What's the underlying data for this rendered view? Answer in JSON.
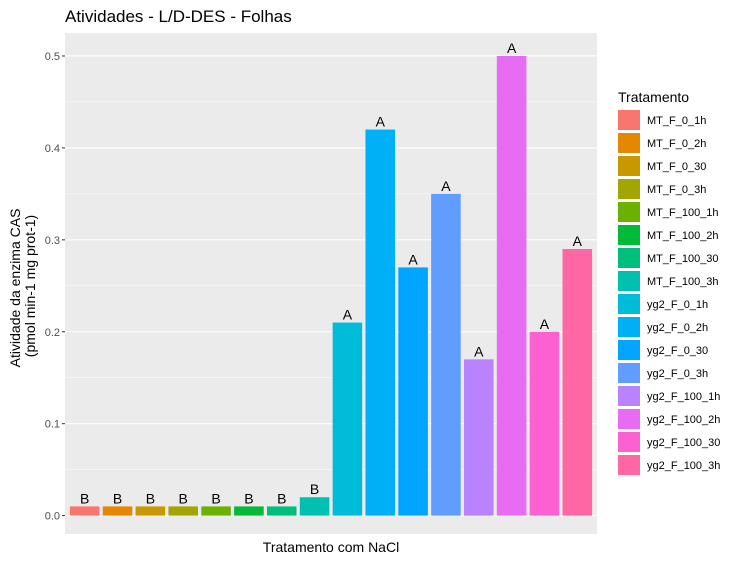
{
  "chart_data": {
    "type": "bar",
    "title": "Atividades - L/D-DES - Folhas",
    "xlabel": "Tratamento com NaCl",
    "ylabel_line1": "Atividade da enzima CAS",
    "ylabel_line2": "(pmol min-1 mg prot-1)",
    "ylim": [
      -0.02,
      0.525
    ],
    "yticks": [
      0.0,
      0.1,
      0.2,
      0.3,
      0.4,
      0.5
    ],
    "ytick_labels": [
      "0.0",
      "0.1",
      "0.2",
      "0.3",
      "0.4",
      "0.5"
    ],
    "grid": true,
    "legend_position": "right",
    "legend_title": "Tratamento",
    "categories": [
      "MT_F_0_1h",
      "MT_F_0_2h",
      "MT_F_0_30",
      "MT_F_0_3h",
      "MT_F_100_1h",
      "MT_F_100_2h",
      "MT_F_100_30",
      "MT_F_100_3h",
      "yg2_F_0_1h",
      "yg2_F_0_2h",
      "yg2_F_0_30",
      "yg2_F_0_3h",
      "yg2_F_100_1h",
      "yg2_F_100_2h",
      "yg2_F_100_30",
      "yg2_F_100_3h"
    ],
    "values": [
      0.01,
      0.01,
      0.01,
      0.01,
      0.01,
      0.01,
      0.01,
      0.02,
      0.21,
      0.42,
      0.27,
      0.35,
      0.17,
      0.5,
      0.2,
      0.29
    ],
    "labels": [
      "B",
      "B",
      "B",
      "B",
      "B",
      "B",
      "B",
      "B",
      "A",
      "A",
      "A",
      "A",
      "A",
      "A",
      "A",
      "A"
    ],
    "colors": [
      "#F8766D",
      "#E58700",
      "#C99800",
      "#A3A500",
      "#6BB100",
      "#00BA38",
      "#00BF7D",
      "#00C0AF",
      "#00BCD8",
      "#00B0F6",
      "#00A5FF",
      "#619CFF",
      "#B983FF",
      "#E76BF3",
      "#FD61D1",
      "#FF67A4"
    ],
    "panel_background": "#EBEBEB",
    "grid_color": "#FFFFFF"
  }
}
